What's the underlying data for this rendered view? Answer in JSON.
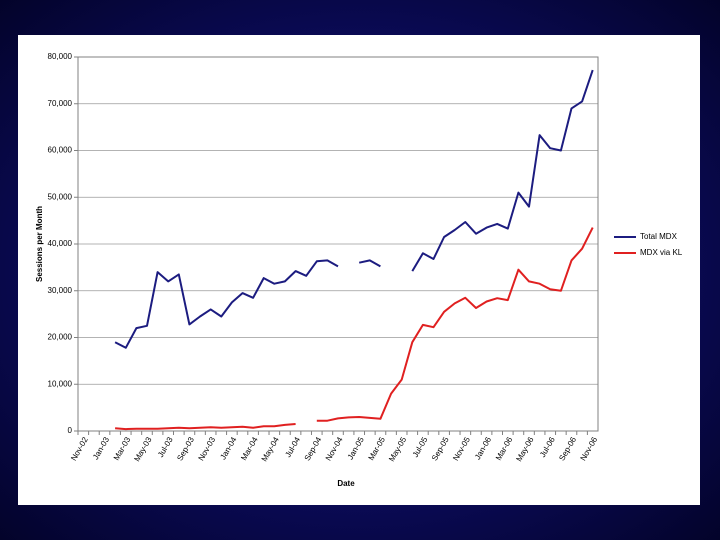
{
  "chart_data": {
    "type": "line",
    "xlabel": "Date",
    "ylabel": "Sessions per Month",
    "categories": [
      "Nov-02",
      null,
      "Jan-03",
      null,
      "Mar-03",
      null,
      "May-03",
      null,
      "Jul-03",
      null,
      "Sep-03",
      null,
      "Nov-03",
      null,
      "Jan-04",
      null,
      "Mar-04",
      null,
      "May-04",
      null,
      "Jul-04",
      null,
      "Sep-04",
      null,
      "Nov-04",
      null,
      "Jan-05",
      null,
      "Mar-05",
      null,
      "May-05",
      null,
      "Jul-05",
      null,
      "Sep-05",
      null,
      "Nov-05",
      null,
      "Jan-06",
      null,
      "Mar-06",
      null,
      "May-06",
      null,
      "Jul-06",
      null,
      "Sep-06",
      null,
      "Nov-06"
    ],
    "series": [
      {
        "name": "Total MDX",
        "color": "#1c1c80",
        "values": [
          null,
          null,
          null,
          19000,
          17800,
          22000,
          22500,
          34000,
          32000,
          33500,
          22800,
          24500,
          26000,
          24500,
          27500,
          29500,
          28500,
          32700,
          31500,
          32000,
          34200,
          33200,
          36300,
          36500,
          35200,
          null,
          36000,
          36500,
          35200,
          null,
          null,
          34200,
          38000,
          36800,
          41500,
          43000,
          44700,
          42200,
          43500,
          44300,
          43300,
          51000,
          48000,
          63300,
          60500,
          60000,
          69000,
          70500,
          77200
        ]
      },
      {
        "name": "MDX via KL",
        "color": "#e02020",
        "values": [
          null,
          null,
          null,
          600,
          400,
          500,
          500,
          500,
          600,
          700,
          600,
          700,
          800,
          700,
          800,
          900,
          700,
          1000,
          1000,
          1300,
          1500,
          null,
          2200,
          2200,
          2700,
          2900,
          3000,
          2800,
          2600,
          8000,
          11000,
          19000,
          22700,
          22200,
          25500,
          27300,
          28500,
          26300,
          27700,
          28400,
          28000,
          34500,
          32000,
          31500,
          30300,
          30000,
          36500,
          39000,
          43500
        ]
      }
    ],
    "ylim": [
      0,
      80000
    ],
    "yticks": [
      0,
      {
        "value": 10000,
        "label": "10,000"
      },
      {
        "value": 20000,
        "label": "20,000"
      },
      {
        "value": 30000,
        "label": "30,000"
      },
      {
        "value": 40000,
        "label": "40,000"
      },
      {
        "value": 50000,
        "label": "50,000"
      },
      {
        "value": 60000,
        "label": "60,000"
      },
      {
        "value": 70000,
        "label": "70,000"
      },
      {
        "value": 80000,
        "label": "80,000"
      }
    ],
    "grid": true,
    "legend": "right"
  }
}
